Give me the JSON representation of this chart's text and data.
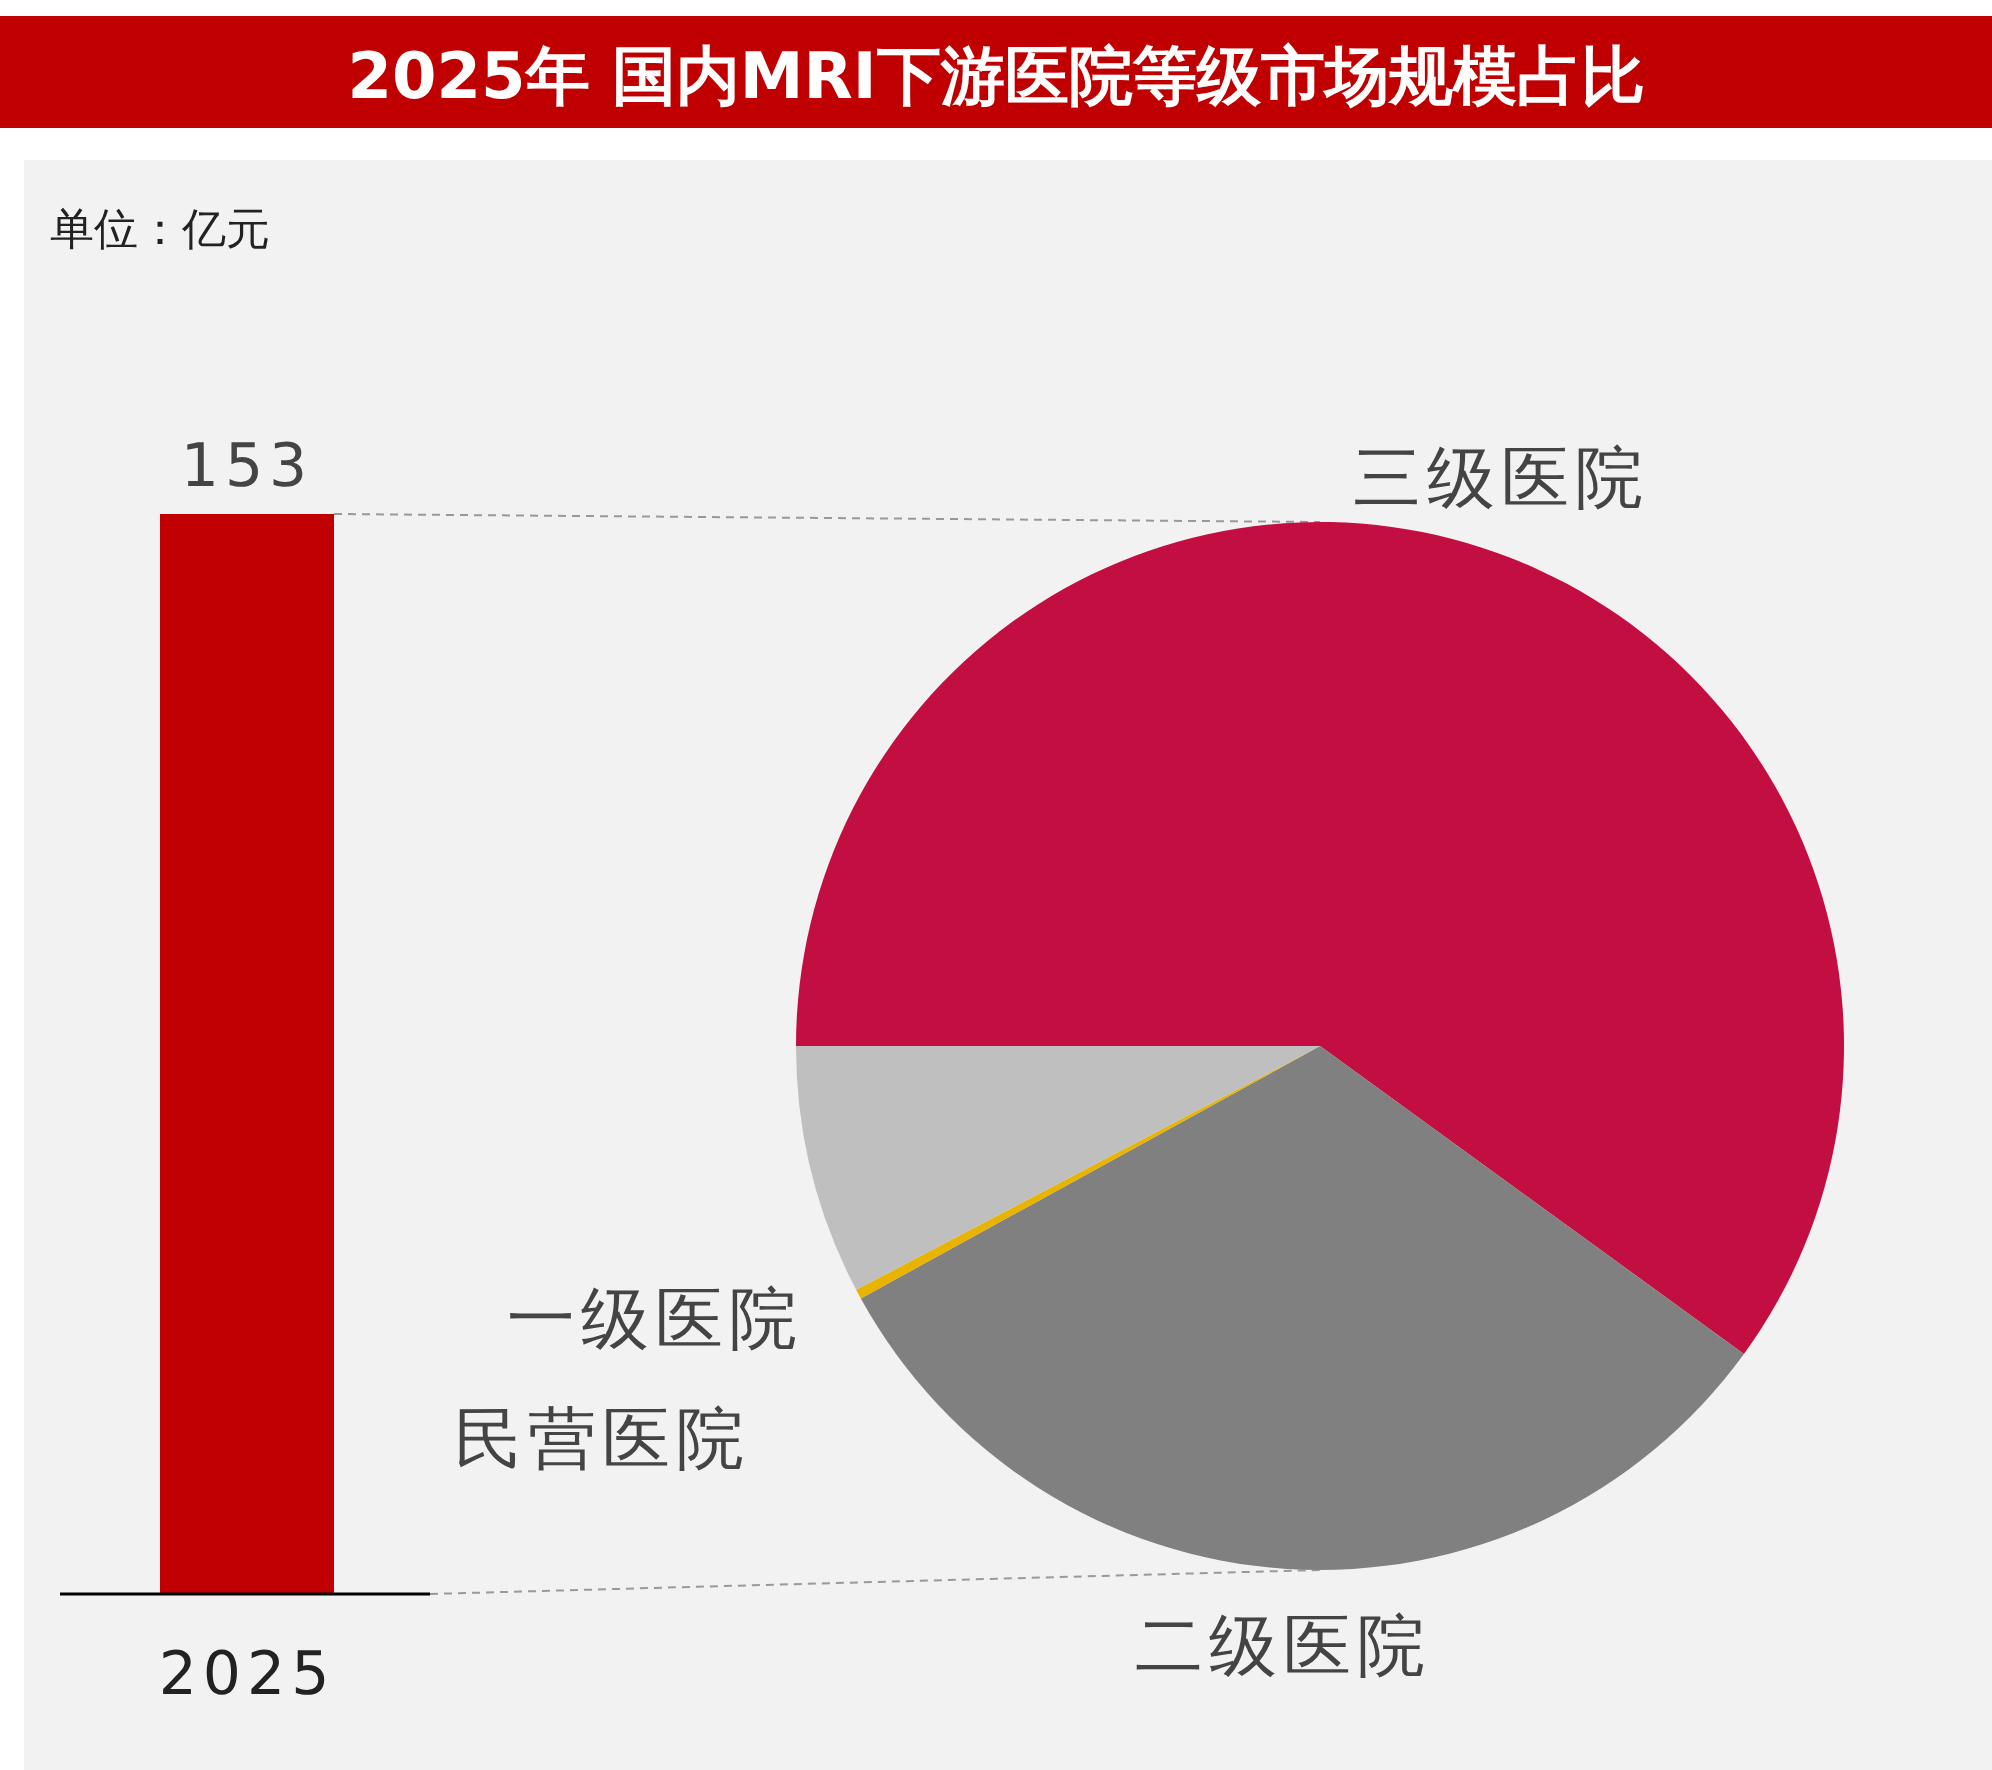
{
  "chart_data": [
    {
      "type": "bar",
      "title": "2025年 国内MRI下游医院等级市场规模占比",
      "subtitle": "单位：亿元",
      "categories": [
        "2025"
      ],
      "values": [
        153
      ],
      "color": "#c00000",
      "data_labels": true
    },
    {
      "type": "pie",
      "categories": [
        "三级医院",
        "二级医院",
        "一级医院",
        "民营医院"
      ],
      "values": [
        60,
        32,
        0.3,
        7.7
      ],
      "colors": [
        "#c20e40",
        "#808080",
        "#e8b400",
        "#bfbfbf"
      ]
    }
  ]
}
